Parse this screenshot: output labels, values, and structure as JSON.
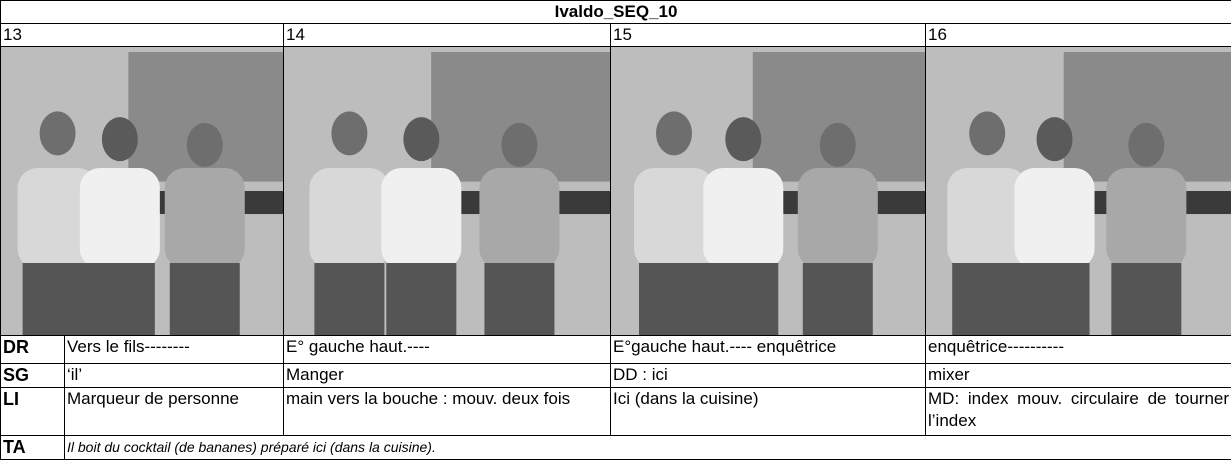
{
  "title": "Ivaldo_SEQ_10",
  "columns": [
    {
      "number": "13",
      "DR": "Vers le fils--------",
      "SG": "‘il’",
      "LI": "Marqueur de personne"
    },
    {
      "number": "14",
      "DR": "E° gauche haut.----",
      "SG": "Manger",
      "LI": "main vers la bouche : mouv. deux fois"
    },
    {
      "number": "15",
      "DR": "E°gauche haut.---- enquêtrice",
      "SG": "DD : ici",
      "LI": "Ici (dans la cuisine)"
    },
    {
      "number": "16",
      "DR": "enquêtrice----------",
      "SG": "mixer",
      "LI": "MD: index mouv. circulaire de tourner l’index"
    }
  ],
  "row_labels": {
    "DR": "DR",
    "SG": "SG",
    "LI": "LI",
    "TA": "TA"
  },
  "TA": "Il boit du cocktail (de bananes) préparé ici (dans la cuisine)."
}
